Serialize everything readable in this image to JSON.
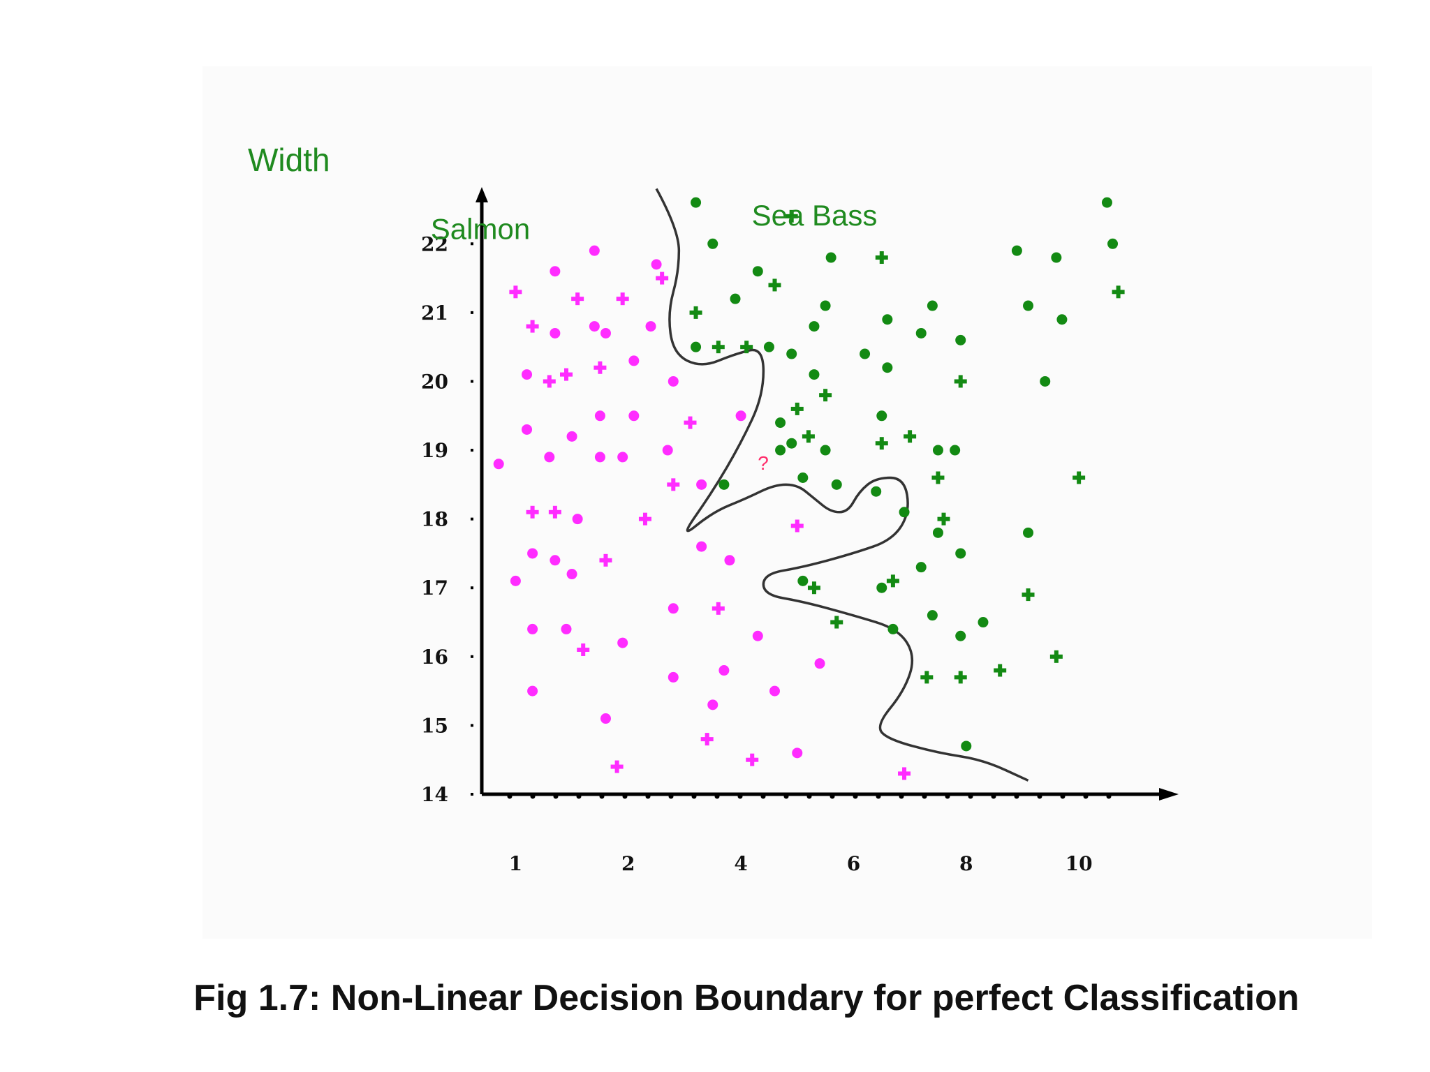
{
  "caption": "Fig 1.7: Non-Linear Decision Boundary for perfect Classification",
  "colors": {
    "salmon": "#ff2cff",
    "sea_bass": "#138a13",
    "boundary": "#333333",
    "unknown": "#ff2c6a",
    "axis": "#000000"
  },
  "chart_data": {
    "type": "scatter",
    "title": "",
    "xlabel": "",
    "ylabel": "Width",
    "x_ticks": [
      "1",
      "2",
      "4",
      "6",
      "8",
      "10"
    ],
    "x_tick_values": [
      1,
      3,
      5,
      7,
      9,
      11
    ],
    "y_ticks": [
      "22",
      "21",
      "20",
      "19",
      "18",
      "17",
      "16",
      "15",
      "14"
    ],
    "y_tick_values": [
      22,
      21,
      20,
      19,
      18,
      17,
      16,
      15,
      14
    ],
    "xlim": [
      0.4,
      12.3
    ],
    "ylim": [
      14,
      22.5
    ],
    "grid": false,
    "series_labels": [
      {
        "text": "Salmon",
        "x": 1.6,
        "y": 22.3
      },
      {
        "text": "Sea Bass",
        "x": 7.3,
        "y": 22.5
      }
    ],
    "unknown_point": {
      "text": "?",
      "x": 5.3,
      "y": 18.8
    },
    "series": [
      {
        "name": "Salmon",
        "points": [
          [
            0.7,
            18.8
          ],
          [
            1.0,
            21.3
          ],
          [
            1.0,
            17.1
          ],
          [
            1.2,
            19.3
          ],
          [
            1.3,
            18.1
          ],
          [
            1.3,
            16.4
          ],
          [
            1.3,
            15.5
          ],
          [
            1.3,
            20.8
          ],
          [
            1.3,
            17.5
          ],
          [
            1.2,
            20.1
          ],
          [
            1.6,
            20.0
          ],
          [
            1.7,
            21.6
          ],
          [
            1.7,
            20.7
          ],
          [
            1.7,
            18.1
          ],
          [
            1.7,
            17.4
          ],
          [
            1.6,
            18.9
          ],
          [
            1.9,
            20.1
          ],
          [
            1.9,
            16.4
          ],
          [
            2.0,
            19.2
          ],
          [
            2.1,
            21.2
          ],
          [
            2.0,
            17.2
          ],
          [
            2.1,
            18.0
          ],
          [
            2.2,
            16.1
          ],
          [
            2.4,
            21.9
          ],
          [
            2.4,
            20.8
          ],
          [
            2.5,
            20.2
          ],
          [
            2.5,
            19.5
          ],
          [
            2.5,
            18.9
          ],
          [
            2.6,
            17.4
          ],
          [
            2.6,
            20.7
          ],
          [
            2.6,
            15.1
          ],
          [
            2.8,
            14.4
          ],
          [
            2.9,
            16.2
          ],
          [
            2.9,
            18.9
          ],
          [
            2.9,
            21.2
          ],
          [
            3.1,
            20.3
          ],
          [
            3.1,
            19.5
          ],
          [
            3.3,
            18.0
          ],
          [
            3.4,
            20.8
          ],
          [
            3.5,
            21.7
          ],
          [
            3.6,
            21.5
          ],
          [
            3.7,
            19.0
          ],
          [
            3.8,
            20.0
          ],
          [
            3.8,
            18.5
          ],
          [
            3.8,
            16.7
          ],
          [
            3.8,
            15.7
          ],
          [
            4.1,
            19.4
          ],
          [
            4.3,
            17.6
          ],
          [
            4.3,
            18.5
          ],
          [
            4.6,
            16.7
          ],
          [
            4.7,
            15.8
          ],
          [
            4.5,
            15.3
          ],
          [
            4.4,
            14.8
          ],
          [
            4.8,
            17.4
          ],
          [
            5.0,
            19.5
          ],
          [
            5.2,
            14.5
          ],
          [
            5.3,
            16.3
          ],
          [
            5.6,
            15.5
          ],
          [
            6.0,
            17.9
          ],
          [
            6.0,
            14.6
          ],
          [
            6.4,
            15.9
          ],
          [
            7.9,
            14.3
          ]
        ]
      },
      {
        "name": "Sea Bass",
        "points": [
          [
            4.2,
            22.6
          ],
          [
            4.2,
            21.0
          ],
          [
            4.2,
            20.5
          ],
          [
            4.5,
            22.0
          ],
          [
            4.6,
            20.5
          ],
          [
            4.7,
            18.5
          ],
          [
            4.9,
            21.2
          ],
          [
            5.1,
            20.5
          ],
          [
            5.3,
            21.6
          ],
          [
            5.5,
            20.5
          ],
          [
            5.6,
            21.4
          ],
          [
            5.7,
            19.4
          ],
          [
            5.7,
            19.0
          ],
          [
            5.9,
            22.4
          ],
          [
            5.9,
            20.4
          ],
          [
            5.9,
            19.1
          ],
          [
            6.0,
            19.6
          ],
          [
            6.1,
            18.6
          ],
          [
            6.1,
            17.1
          ],
          [
            6.2,
            19.2
          ],
          [
            6.3,
            20.8
          ],
          [
            6.3,
            20.1
          ],
          [
            6.3,
            17.0
          ],
          [
            6.6,
            21.8
          ],
          [
            6.5,
            21.1
          ],
          [
            6.5,
            19.8
          ],
          [
            6.5,
            19.0
          ],
          [
            6.7,
            18.5
          ],
          [
            6.7,
            16.5
          ],
          [
            7.2,
            20.4
          ],
          [
            7.5,
            19.5
          ],
          [
            7.5,
            19.1
          ],
          [
            7.4,
            18.4
          ],
          [
            7.5,
            17.0
          ],
          [
            7.5,
            21.8
          ],
          [
            7.6,
            20.9
          ],
          [
            7.6,
            20.2
          ],
          [
            7.7,
            17.1
          ],
          [
            7.7,
            16.4
          ],
          [
            7.9,
            18.1
          ],
          [
            8.0,
            19.2
          ],
          [
            8.2,
            20.7
          ],
          [
            8.2,
            17.3
          ],
          [
            8.3,
            15.7
          ],
          [
            8.4,
            16.6
          ],
          [
            8.4,
            21.1
          ],
          [
            8.5,
            18.6
          ],
          [
            8.5,
            17.8
          ],
          [
            8.5,
            19.0
          ],
          [
            8.6,
            18.0
          ],
          [
            8.8,
            19.0
          ],
          [
            8.9,
            20.6
          ],
          [
            8.9,
            20.0
          ],
          [
            8.9,
            17.5
          ],
          [
            8.9,
            16.3
          ],
          [
            8.9,
            15.7
          ],
          [
            9.0,
            14.7
          ],
          [
            9.3,
            16.5
          ],
          [
            9.6,
            15.8
          ],
          [
            9.9,
            21.9
          ],
          [
            10.1,
            17.8
          ],
          [
            10.1,
            16.9
          ],
          [
            10.1,
            21.1
          ],
          [
            10.4,
            20.0
          ],
          [
            10.6,
            16.0
          ],
          [
            10.6,
            21.8
          ],
          [
            10.7,
            20.9
          ],
          [
            11.0,
            18.6
          ],
          [
            11.5,
            22.6
          ],
          [
            11.6,
            22.0
          ],
          [
            11.7,
            21.3
          ]
        ]
      }
    ],
    "boundary": [
      [
        3.5,
        22.8
      ],
      [
        3.9,
        22.2
      ],
      [
        3.9,
        21.6
      ],
      [
        3.7,
        21.0
      ],
      [
        3.8,
        20.4
      ],
      [
        4.3,
        20.2
      ],
      [
        4.9,
        20.4
      ],
      [
        5.4,
        20.5
      ],
      [
        5.4,
        19.8
      ],
      [
        5.0,
        19.1
      ],
      [
        4.5,
        18.4
      ],
      [
        3.9,
        17.7
      ],
      [
        4.5,
        18.1
      ],
      [
        5.1,
        18.3
      ],
      [
        5.6,
        18.5
      ],
      [
        6.0,
        18.5
      ],
      [
        6.3,
        18.3
      ],
      [
        6.6,
        18.1
      ],
      [
        6.9,
        18.1
      ],
      [
        7.1,
        18.4
      ],
      [
        7.4,
        18.6
      ],
      [
        7.9,
        18.6
      ],
      [
        8.0,
        18.1
      ],
      [
        7.7,
        17.7
      ],
      [
        7.0,
        17.5
      ],
      [
        6.1,
        17.3
      ],
      [
        5.4,
        17.2
      ],
      [
        5.4,
        16.9
      ],
      [
        6.1,
        16.8
      ],
      [
        7.0,
        16.6
      ],
      [
        7.8,
        16.4
      ],
      [
        8.1,
        16.0
      ],
      [
        7.9,
        15.5
      ],
      [
        7.4,
        15.0
      ],
      [
        7.6,
        14.8
      ],
      [
        8.5,
        14.6
      ],
      [
        9.3,
        14.5
      ],
      [
        10.1,
        14.2
      ]
    ]
  }
}
